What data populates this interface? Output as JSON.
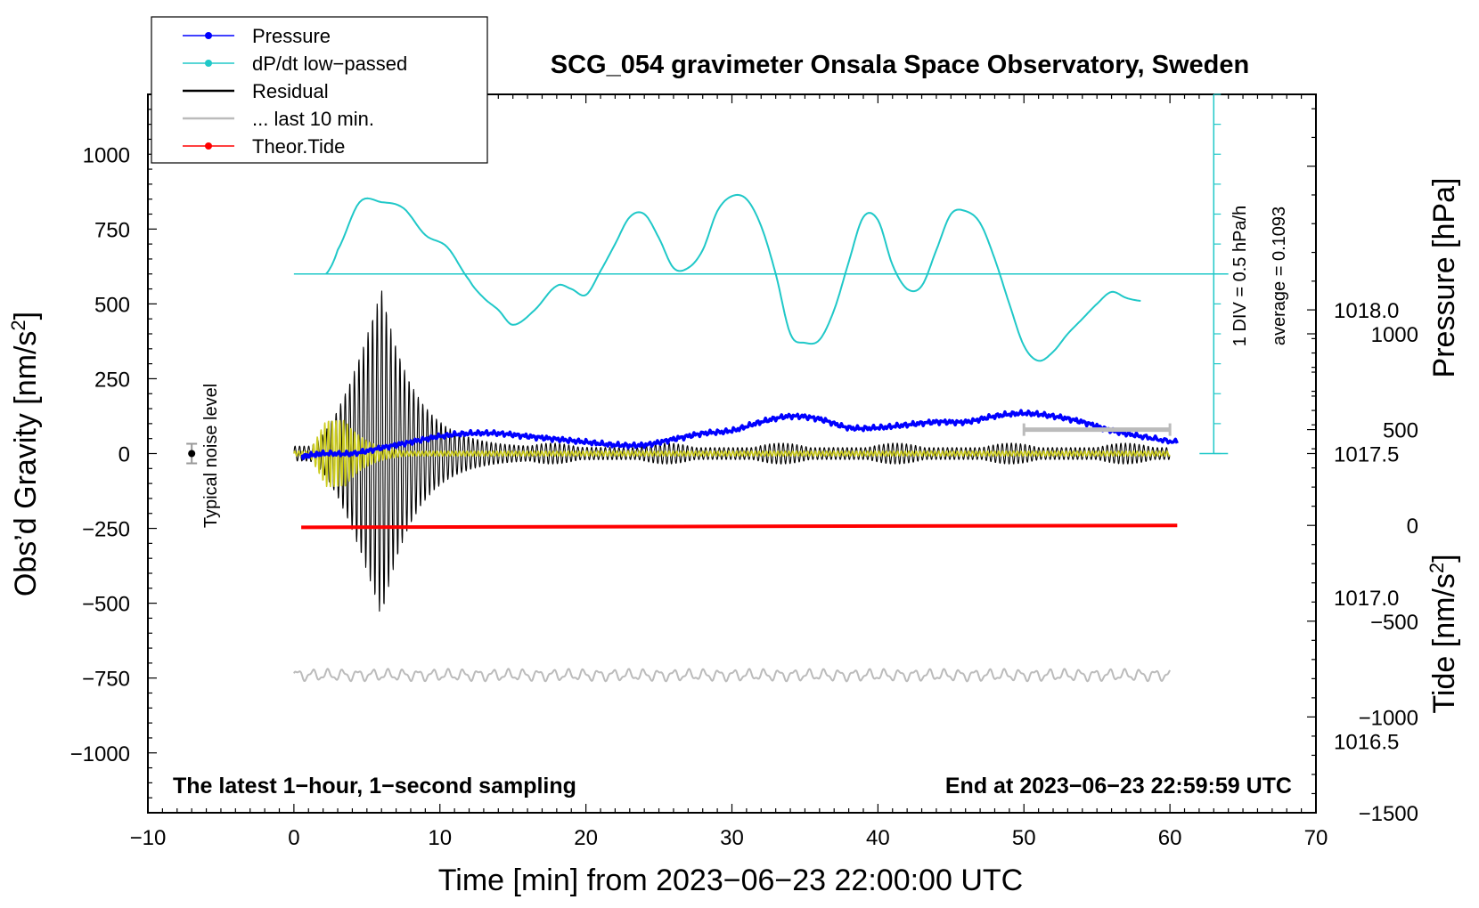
{
  "chart_data": {
    "type": "line",
    "title": "SCG_054 gravimeter Onsala Space Observatory, Sweden",
    "xlabel": "Time [min] from 2023−06−23 22:00:00 UTC",
    "ylabel_left": "Obs’d Gravity [nm/s",
    "ylabel_left_sup": "2",
    "ylabel_left_close": "]",
    "ylabel_right_pressure": "Pressure [hPa]",
    "ylabel_right_tide": "Tide [nm/s",
    "ylabel_right_tide_sup": "2",
    "ylabel_right_tide_close": "]",
    "xlim": [
      -10,
      70
    ],
    "ylim_gravity": [
      -1200,
      1200
    ],
    "ylim_pressure": [
      1016.25,
      1018.75
    ],
    "ylim_tide": [
      -1500,
      2250
    ],
    "x_ticks": [
      -10,
      0,
      10,
      20,
      30,
      40,
      50,
      60,
      70
    ],
    "x_tick_labels": [
      "−10",
      "0",
      "10",
      "20",
      "30",
      "40",
      "50",
      "60",
      "70"
    ],
    "y_ticks_gravity": [
      1000,
      750,
      500,
      250,
      0,
      -250,
      -500,
      -750,
      -1000
    ],
    "y_tick_labels_gravity": [
      "1000",
      "750",
      "500",
      "250",
      "0",
      "−250",
      "−500",
      "−750",
      "−1000"
    ],
    "y_ticks_pressure": [
      1018.0,
      1017.5,
      1017.0,
      1016.5
    ],
    "y_tick_labels_pressure": [
      "1018.0",
      "1017.5",
      "1017.0",
      "1016.5"
    ],
    "y_ticks_tide": [
      1000,
      500,
      0,
      -500,
      -1000,
      -1500
    ],
    "y_tick_labels_tide": [
      "1000",
      "500",
      "0",
      "−500",
      "−1000",
      "−1500"
    ],
    "legend": [
      {
        "label": "Pressure",
        "color": "#0000ff",
        "marker": true
      },
      {
        "label": "dP/dt low−passed",
        "color": "#20c8c8",
        "marker": true
      },
      {
        "label": "Residual",
        "color": "#000000",
        "marker": false
      },
      {
        "label": "... last 10 min.",
        "color": "#bbbbbb",
        "marker": false
      },
      {
        "label": "Theor.Tide",
        "color": "#ff0000",
        "marker": true
      }
    ],
    "colors": {
      "pressure": "#0000ff",
      "dpdt": "#20c8c8",
      "residual": "#000000",
      "yellow_trace": "#cccc20",
      "gray_trace": "#bbbbbb",
      "tide": "#ff0000"
    },
    "series": [
      {
        "name": "Pressure",
        "axis": "pressure",
        "x": [
          0.5,
          2,
          4,
          6,
          8,
          10,
          12,
          14,
          16,
          18,
          20,
          22,
          24,
          26,
          28,
          30,
          32,
          34,
          36,
          38,
          40,
          42,
          44,
          46,
          48,
          50,
          52,
          54,
          56,
          58,
          60.5
        ],
        "y": [
          1017.49,
          1017.5,
          1017.5,
          1017.52,
          1017.54,
          1017.56,
          1017.57,
          1017.57,
          1017.56,
          1017.55,
          1017.54,
          1017.53,
          1017.53,
          1017.55,
          1017.57,
          1017.58,
          1017.61,
          1017.63,
          1017.62,
          1017.59,
          1017.59,
          1017.6,
          1017.61,
          1017.61,
          1017.63,
          1017.64,
          1017.63,
          1017.61,
          1017.58,
          1017.56,
          1017.54
        ]
      },
      {
        "name": "dP/dt low-passed",
        "axis": "gravity",
        "x": [
          2.2,
          3,
          4.5,
          6,
          7.5,
          9,
          10.5,
          12,
          13,
          14,
          15,
          16.5,
          18,
          19,
          20,
          21,
          22,
          23,
          24,
          25,
          26,
          27,
          28,
          29,
          30,
          31,
          32,
          33,
          34,
          35,
          36,
          37,
          38,
          39,
          40,
          41,
          42,
          43,
          44,
          45,
          46,
          47,
          48,
          49,
          50,
          51,
          52,
          53,
          54,
          55,
          56,
          57,
          58
        ],
        "y": [
          600,
          680,
          840,
          840,
          820,
          730,
          690,
          580,
          520,
          480,
          430,
          480,
          560,
          550,
          530,
          610,
          700,
          790,
          800,
          720,
          620,
          620,
          680,
          810,
          860,
          850,
          760,
          600,
          400,
          370,
          380,
          480,
          640,
          790,
          780,
          630,
          550,
          560,
          680,
          800,
          810,
          770,
          650,
          500,
          360,
          310,
          340,
          400,
          450,
          500,
          540,
          520,
          510
        ]
      },
      {
        "name": "Residual",
        "axis": "gravity",
        "x_range": [
          0,
          60
        ],
        "envelope": {
          "start": 1,
          "peak_minute": 6,
          "peak_amplitude": 550,
          "decay_to": 20
        }
      },
      {
        "name": "Yellow trace",
        "axis": "gravity",
        "x_range": [
          1,
          10
        ],
        "peak_amplitude": 110
      },
      {
        "name": "Theor.Tide",
        "axis": "tide",
        "x": [
          0.5,
          60.5
        ],
        "y": [
          -10,
          0
        ]
      },
      {
        "name": "... last 10 min.",
        "axis": "gravity",
        "x_range": [
          0,
          60
        ],
        "baseline": -740,
        "amplitude": 15
      }
    ],
    "dpdt_zero_line": 600,
    "dpdt_scale_bar": {
      "x_minute": 63,
      "top": 1200,
      "bottom": 0,
      "label_div": "1 DIV = 0.5 hPa/h",
      "label_avg": "average = 0.1093"
    },
    "gray_scale_bar": {
      "x_start": 50,
      "x_end": 60,
      "y": 500
    },
    "noise_marker": {
      "x": -7,
      "y": 0,
      "label": "Typical noise level"
    },
    "annotations": {
      "bottom_left": "The latest 1−hour, 1−second sampling",
      "bottom_right": "End at 2023−06−23 22:59:59 UTC"
    }
  }
}
